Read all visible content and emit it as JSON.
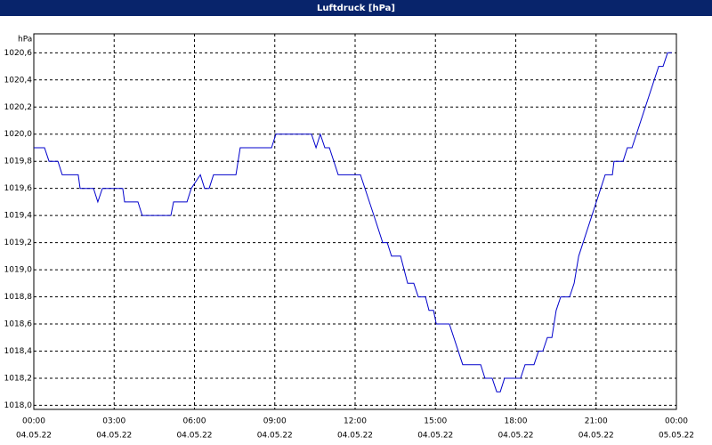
{
  "chart_data": {
    "type": "line",
    "title": "Luftdruck [hPa]",
    "y_unit": "hPa",
    "x": [
      0,
      0.4,
      0.57,
      0.9,
      1.06,
      1.66,
      1.73,
      2.23,
      2.39,
      2.56,
      3.32,
      3.39,
      3.89,
      4.05,
      5.12,
      5.22,
      5.72,
      5.88,
      6.22,
      6.38,
      6.55,
      6.71,
      7.55,
      7.71,
      8.88,
      9.04,
      10.37,
      10.54,
      10.7,
      10.87,
      11.04,
      11.37,
      12.2,
      12.7,
      13.03,
      13.2,
      13.36,
      13.7,
      13.96,
      14.19,
      14.36,
      14.63,
      14.76,
      14.93,
      15.03,
      15.52,
      16.02,
      16.69,
      16.85,
      17.12,
      17.29,
      17.42,
      17.58,
      18.18,
      18.35,
      18.68,
      18.85,
      19.01,
      19.18,
      19.35,
      19.51,
      19.68,
      20.01,
      20.18,
      20.35,
      21.34,
      21.61,
      21.67,
      22.01,
      22.17,
      22.34,
      23.34,
      23.5,
      23.67,
      23.83
    ],
    "series": [
      {
        "name": "Luftdruck",
        "color": "#0000cc",
        "values": [
          1019.9,
          1019.9,
          1019.8,
          1019.8,
          1019.7,
          1019.7,
          1019.6,
          1019.6,
          1019.5,
          1019.6,
          1019.6,
          1019.5,
          1019.5,
          1019.4,
          1019.4,
          1019.5,
          1019.5,
          1019.6,
          1019.7,
          1019.6,
          1019.6,
          1019.7,
          1019.7,
          1019.9,
          1019.9,
          1020.0,
          1020.0,
          1019.9,
          1020.0,
          1019.9,
          1019.9,
          1019.7,
          1019.7,
          1019.4,
          1019.2,
          1019.2,
          1019.1,
          1019.1,
          1018.9,
          1018.9,
          1018.8,
          1018.8,
          1018.7,
          1018.7,
          1018.6,
          1018.6,
          1018.3,
          1018.3,
          1018.2,
          1018.2,
          1018.1,
          1018.1,
          1018.2,
          1018.2,
          1018.3,
          1018.3,
          1018.4,
          1018.4,
          1018.5,
          1018.5,
          1018.7,
          1018.8,
          1018.8,
          1018.9,
          1019.1,
          1019.7,
          1019.7,
          1019.8,
          1019.8,
          1019.9,
          1019.9,
          1020.5,
          1020.5,
          1020.6,
          1020.6
        ]
      }
    ],
    "xlim": [
      0,
      24
    ],
    "ylim": [
      1017.97,
      1020.74
    ],
    "xticks": [
      {
        "value": 0,
        "label": "00:00"
      },
      {
        "value": 3,
        "label": "03:00"
      },
      {
        "value": 6,
        "label": "06:00"
      },
      {
        "value": 9,
        "label": "09:00"
      },
      {
        "value": 12,
        "label": "12:00"
      },
      {
        "value": 15,
        "label": "15:00"
      },
      {
        "value": 18,
        "label": "18:00"
      },
      {
        "value": 21,
        "label": "21:00"
      },
      {
        "value": 24,
        "label": "00:00"
      }
    ],
    "xtick_dates": [
      "04.05.22",
      "04.05.22",
      "04.05.22",
      "04.05.22",
      "04.05.22",
      "04.05.22",
      "04.05.22",
      "04.05.22",
      "05.05.22"
    ],
    "yticks": [
      {
        "value": 1018,
        "label": "1018,0"
      },
      {
        "value": 1018.2,
        "label": "1018,2"
      },
      {
        "value": 1018.4,
        "label": "1018,4"
      },
      {
        "value": 1018.6,
        "label": "1018,6"
      },
      {
        "value": 1018.8,
        "label": "1018,8"
      },
      {
        "value": 1019,
        "label": "1019,0"
      },
      {
        "value": 1019.2,
        "label": "1019,2"
      },
      {
        "value": 1019.4,
        "label": "1019,4"
      },
      {
        "value": 1019.6,
        "label": "1019,6"
      },
      {
        "value": 1019.8,
        "label": "1019,8"
      },
      {
        "value": 1020,
        "label": "1020,0"
      },
      {
        "value": 1020.2,
        "label": "1020,2"
      },
      {
        "value": 1020.4,
        "label": "1020,4"
      },
      {
        "value": 1020.6,
        "label": "1020,6"
      }
    ],
    "grid": true
  }
}
